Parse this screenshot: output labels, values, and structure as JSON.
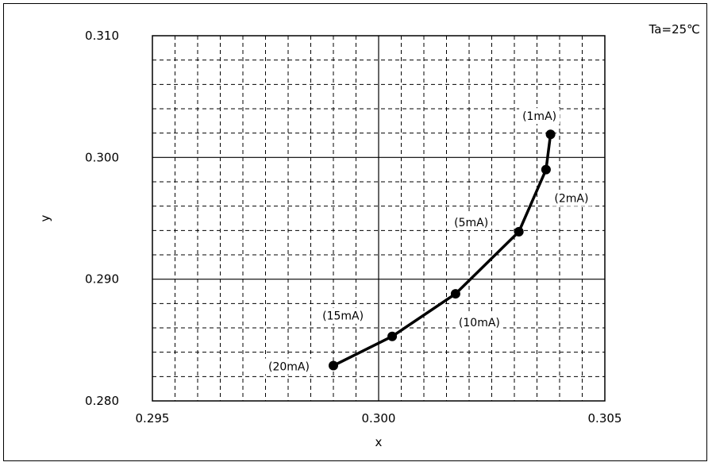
{
  "chart_data": {
    "type": "line",
    "title": "",
    "condition": "Ta=25℃",
    "xlabel": "x",
    "ylabel": "y",
    "xlim": [
      0.295,
      0.305
    ],
    "ylim": [
      0.28,
      0.31
    ],
    "x_ticks": [
      "0.295",
      "0.300",
      "0.305"
    ],
    "y_ticks": [
      "0.310",
      "0.300",
      "0.290",
      "0.280"
    ],
    "grid": true,
    "series": [
      {
        "points": [
          {
            "x": 0.3038,
            "y": 0.3019,
            "label": "(1mA)"
          },
          {
            "x": 0.3037,
            "y": 0.299,
            "label": "(2mA)"
          },
          {
            "x": 0.3031,
            "y": 0.2939,
            "label": "(5mA)"
          },
          {
            "x": 0.3017,
            "y": 0.2888,
            "label": "(10mA)"
          },
          {
            "x": 0.3003,
            "y": 0.2853,
            "label": "(15mA)"
          },
          {
            "x": 0.299,
            "y": 0.2829,
            "label": "(20mA)"
          }
        ]
      }
    ]
  }
}
